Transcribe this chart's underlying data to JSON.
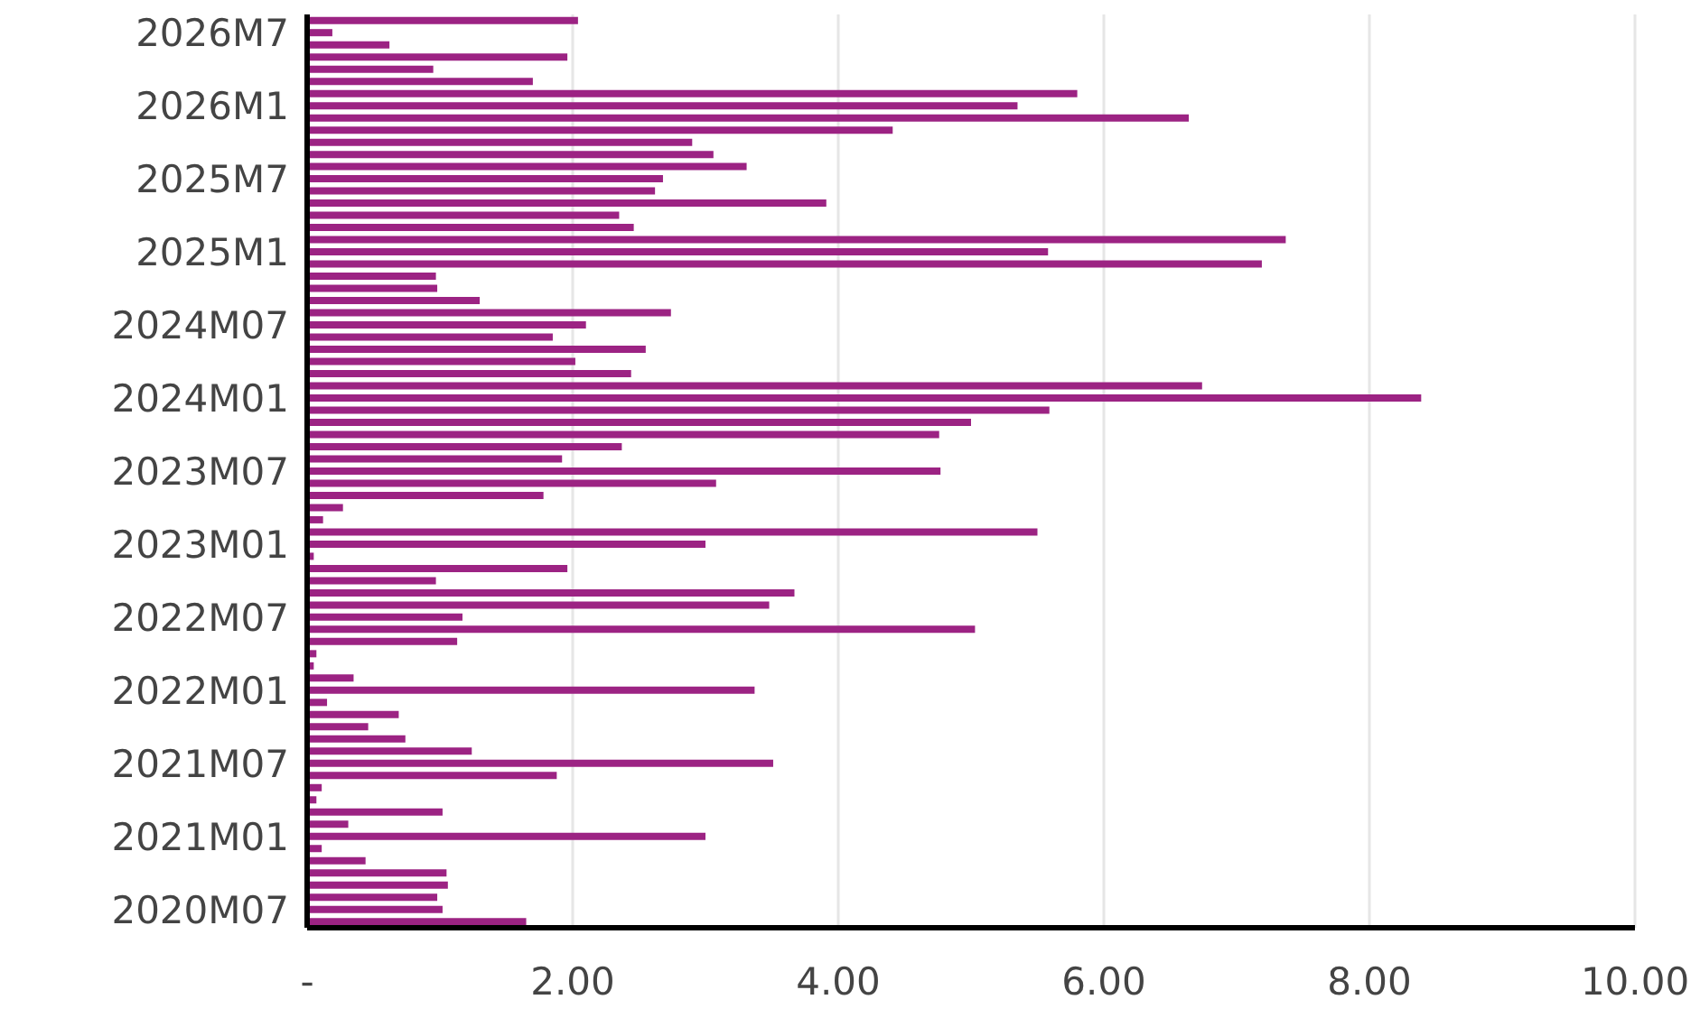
{
  "chart_data": {
    "type": "bar",
    "orientation": "horizontal",
    "categories": [
      null,
      "2026M7",
      null,
      null,
      null,
      null,
      null,
      "2026M1",
      null,
      null,
      null,
      null,
      null,
      "2025M7",
      null,
      null,
      null,
      null,
      null,
      "2025M1",
      null,
      null,
      null,
      null,
      null,
      "2024M07",
      null,
      null,
      null,
      null,
      null,
      "2024M01",
      null,
      null,
      null,
      null,
      null,
      "2023M07",
      null,
      null,
      null,
      null,
      null,
      "2023M01",
      null,
      null,
      null,
      null,
      null,
      "2022M07",
      null,
      null,
      null,
      null,
      null,
      "2022M01",
      null,
      null,
      null,
      null,
      null,
      "2021M07",
      null,
      null,
      null,
      null,
      null,
      "2021M01",
      null,
      null,
      null,
      null,
      null,
      "2020M07",
      null
    ],
    "values": [
      2.04,
      0.19,
      0.62,
      1.96,
      0.95,
      1.7,
      5.8,
      5.35,
      6.64,
      4.41,
      2.9,
      3.06,
      3.31,
      2.68,
      2.62,
      3.91,
      2.35,
      2.46,
      7.37,
      5.58,
      7.19,
      0.97,
      0.98,
      1.3,
      2.74,
      2.1,
      1.85,
      2.55,
      2.02,
      2.44,
      6.74,
      8.39,
      5.59,
      5.0,
      4.76,
      2.37,
      1.92,
      4.77,
      3.08,
      1.78,
      0.27,
      0.12,
      5.5,
      3.0,
      0.05,
      1.96,
      0.97,
      3.67,
      3.48,
      1.17,
      5.03,
      1.13,
      0.07,
      0.05,
      0.35,
      3.37,
      0.15,
      0.69,
      0.46,
      0.74,
      1.24,
      3.51,
      1.88,
      0.11,
      0.07,
      1.02,
      0.31,
      3.0,
      0.11,
      0.44,
      1.05,
      1.06,
      0.98,
      1.02,
      1.65
    ],
    "color": "#9c2383",
    "xlim": [
      0,
      10
    ],
    "xticks": [
      {
        "value": 0,
        "label": "-"
      },
      {
        "value": 2,
        "label": "2.00"
      },
      {
        "value": 4,
        "label": "4.00"
      },
      {
        "value": 6,
        "label": "6.00"
      },
      {
        "value": 8,
        "label": "8.00"
      },
      {
        "value": 10,
        "label": "10.00"
      }
    ],
    "grid": "x",
    "legend": false
  }
}
